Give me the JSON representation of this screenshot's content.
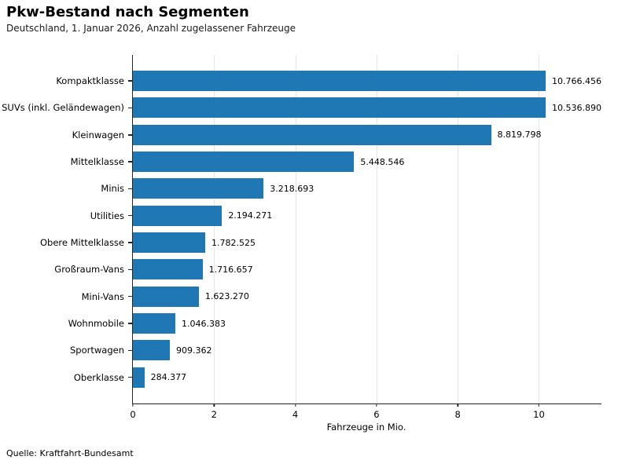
{
  "header": {
    "title": "Pkw-Bestand nach Segmenten",
    "subtitle": "Deutschland, 1. Januar 2026, Anzahl zugelassener Fahrzeuge"
  },
  "footer": {
    "source": "Quelle: Kraftfahrt-Bundesamt"
  },
  "chart_data": {
    "type": "bar",
    "orientation": "horizontal",
    "title": "Pkw-Bestand nach Segmenten",
    "subtitle": "Deutschland, 1. Januar 2026, Anzahl zugelassener Fahrzeuge",
    "categories": [
      "Kompaktklasse",
      "SUVs (inkl. Geländewagen)",
      "Kleinwagen",
      "Mittelklasse",
      "Minis",
      "Utilities",
      "Obere Mittelklasse",
      "Großraum-Vans",
      "Mini-Vans",
      "Wohnmobile",
      "Sportwagen",
      "Oberklasse"
    ],
    "values": [
      10766456,
      10536890,
      8819798,
      5448546,
      3218693,
      2194271,
      1782525,
      1716657,
      1623270,
      1046383,
      909362,
      284377
    ],
    "value_labels": [
      "10.766.456",
      "10.536.890",
      "8.819.798",
      "5.448.546",
      "3.218.693",
      "2.194.271",
      "1.782.525",
      "1.716.657",
      "1.623.270",
      "1.046.383",
      "909.362",
      "284.377"
    ],
    "xlabel": "Fahrzeuge in Mio.",
    "x_ticks": [
      0,
      2,
      4,
      6,
      8,
      10
    ],
    "x_tick_labels": [
      "0",
      "2",
      "4",
      "6",
      "8",
      "10"
    ],
    "xlim": [
      0,
      11.54
    ],
    "bar_color": "#1f77b4",
    "grid": "vertical",
    "legend": "none",
    "source": "Quelle: Kraftfahrt-Bundesamt"
  }
}
